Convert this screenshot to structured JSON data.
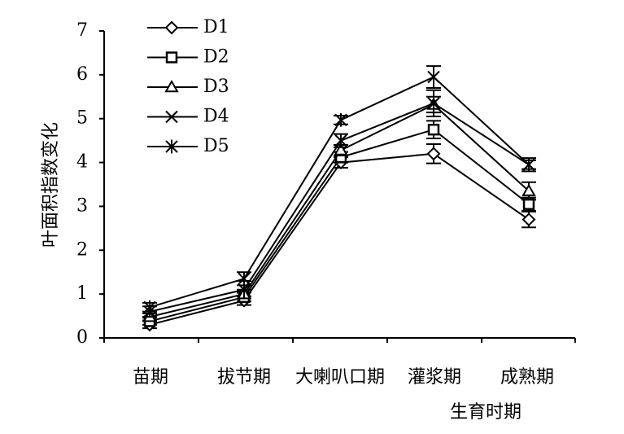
{
  "chart_data": {
    "type": "line",
    "title": "",
    "xlabel": "生育时期",
    "ylabel": "叶面积指数变化",
    "categories": [
      "苗期",
      "拔节期",
      "大喇叭口期",
      "灌浆期",
      "成熟期"
    ],
    "ylim": [
      0,
      7
    ],
    "yticks": [
      0,
      1,
      2,
      3,
      4,
      5,
      6,
      7
    ],
    "grid": false,
    "legend_position": "top-left",
    "series": [
      {
        "name": "D1",
        "marker": "diamond",
        "values": [
          0.3,
          0.85,
          4.0,
          4.2,
          2.7
        ],
        "errors": [
          0.08,
          0.1,
          0.12,
          0.22,
          0.18
        ]
      },
      {
        "name": "D2",
        "marker": "square",
        "values": [
          0.38,
          0.93,
          4.12,
          4.75,
          3.05
        ],
        "errors": [
          0.08,
          0.1,
          0.12,
          0.2,
          0.15
        ]
      },
      {
        "name": "D3",
        "marker": "triangle",
        "values": [
          0.48,
          1.0,
          4.28,
          5.32,
          3.35
        ],
        "errors": [
          0.08,
          0.1,
          0.12,
          0.18,
          0.2
        ]
      },
      {
        "name": "D4",
        "marker": "x",
        "values": [
          0.6,
          1.1,
          4.5,
          5.35,
          3.95
        ],
        "errors": [
          0.12,
          0.2,
          0.15,
          0.3,
          0.15
        ]
      },
      {
        "name": "D5",
        "marker": "asterisk",
        "values": [
          0.7,
          1.35,
          4.97,
          5.95,
          3.95
        ],
        "errors": [
          0.1,
          0.15,
          0.1,
          0.25,
          0.1
        ]
      }
    ]
  }
}
